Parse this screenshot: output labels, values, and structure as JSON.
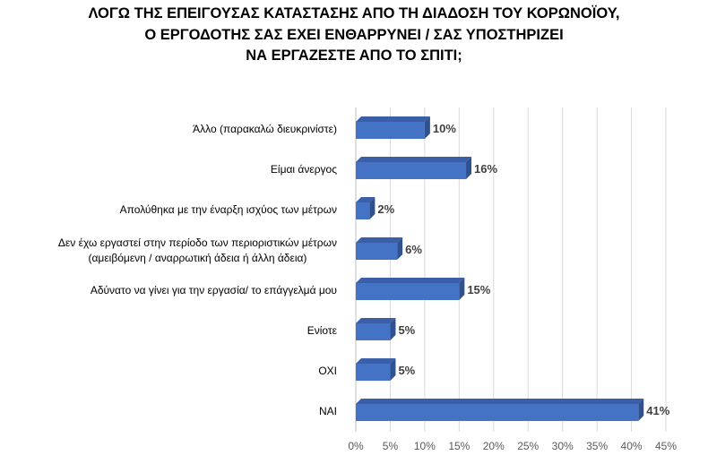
{
  "chart_data": {
    "type": "bar",
    "orientation": "horizontal",
    "title_lines": [
      "ΛΟΓΩ ΤΗΣ ΕΠΕΙΓΟΥΣΑΣ ΚΑΤΑΣΤΑΣΗΣ  ΑΠΟ ΤΗ ΔΙΑΔΟΣΗ ΤΟΥ ΚΟΡΩΝΟΪΟΥ,",
      "Ο ΕΡΓΟΔΟΤΗΣ ΣΑΣ ΕΧΕΙ ΕΝΘΑΡΡΥΝΕΙ / ΣΑΣ ΥΠΟΣΤΗΡΙΖΕΙ",
      "ΝΑ ΕΡΓΑΖΕΣΤΕ ΑΠΟ ΤΟ ΣΠΙΤΙ;"
    ],
    "categories": [
      [
        "Άλλο (παρακαλώ διευκρινίστε)"
      ],
      [
        "Είμαι άνεργος"
      ],
      [
        "Απολύθηκα με την έναρξη ισχύος των μέτρων"
      ],
      [
        "Δεν έχω εργαστεί στην περίοδο των περιοριστικών μέτρων",
        "(αμειβόμενη / αναρρωτική άδεια ή άλλη άδεια)"
      ],
      [
        "Αδύνατο να γίνει για την εργασία/ το επάγγελμά μου"
      ],
      [
        "Ενίοτε"
      ],
      [
        "ΟΧΙ"
      ],
      [
        "ΝΑΙ"
      ]
    ],
    "values": [
      10,
      16,
      2,
      6,
      15,
      5,
      5,
      41
    ],
    "value_labels": [
      "10%",
      "16%",
      "2%",
      "6%",
      "15%",
      "5%",
      "5%",
      "41%"
    ],
    "xlim": [
      0,
      45
    ],
    "x_ticks": [
      0,
      5,
      10,
      15,
      20,
      25,
      30,
      35,
      40,
      45
    ],
    "x_tick_labels": [
      "0%",
      "5%",
      "10%",
      "15%",
      "20%",
      "25%",
      "30%",
      "35%",
      "40%",
      "45%"
    ],
    "grid": "vertical",
    "legend": "none",
    "bar_color": "#4472c4",
    "bar_side_color": "#2f528f",
    "bar_top_color": "#3a5ea8",
    "grid_color": "#d9d9d9",
    "axis_color": "#bfbfbf"
  }
}
